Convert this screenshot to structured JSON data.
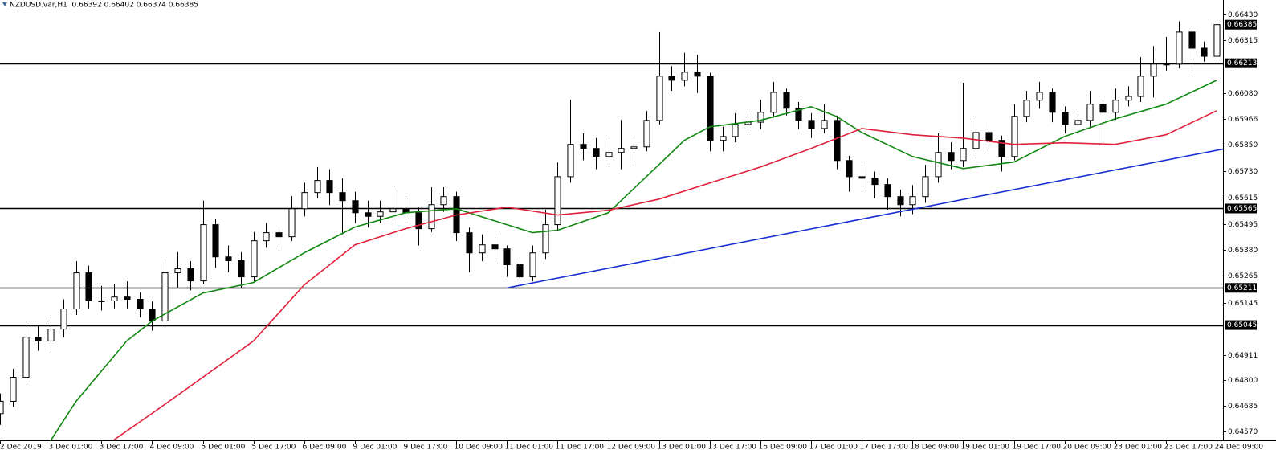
{
  "chart_data": {
    "type": "candlestick",
    "title": "NZDUSD.var,H1  0.66392 0.66402 0.66374 0.66385",
    "xlim": [
      0,
      96.5
    ],
    "ylim": [
      0.64531,
      0.66495
    ],
    "bull_color": "#ffffff",
    "bear_color": "#000000",
    "xticks": [
      {
        "value": 0,
        "label": "2 Dec 2019"
      },
      {
        "value": 4,
        "label": "3 Dec 01:00"
      },
      {
        "value": 8,
        "label": "3 Dec 17:00"
      },
      {
        "value": 12,
        "label": "4 Dec 09:00"
      },
      {
        "value": 16,
        "label": "5 Dec 01:00"
      },
      {
        "value": 20,
        "label": "5 Dec 17:00"
      },
      {
        "value": 24,
        "label": "6 Dec 09:00"
      },
      {
        "value": 28,
        "label": "9 Dec 01:00"
      },
      {
        "value": 32,
        "label": "9 Dec 17:00"
      },
      {
        "value": 36,
        "label": "10 Dec 09:00"
      },
      {
        "value": 40,
        "label": "11 Dec 01:00"
      },
      {
        "value": 44,
        "label": "11 Dec 17:00"
      },
      {
        "value": 48,
        "label": "12 Dec 09:00"
      },
      {
        "value": 52,
        "label": "13 Dec 01:00"
      },
      {
        "value": 56,
        "label": "13 Dec 17:00"
      },
      {
        "value": 60,
        "label": "16 Dec 09:00"
      },
      {
        "value": 64,
        "label": "17 Dec 01:00"
      },
      {
        "value": 68,
        "label": "17 Dec 17:00"
      },
      {
        "value": 72,
        "label": "18 Dec 09:00"
      },
      {
        "value": 76,
        "label": "19 Dec 01:00"
      },
      {
        "value": 80,
        "label": "19 Dec 17:00"
      },
      {
        "value": 84,
        "label": "20 Dec 09:00"
      },
      {
        "value": 88,
        "label": "23 Dec 01:00"
      },
      {
        "value": 92,
        "label": "23 Dec 17:00"
      },
      {
        "value": 96,
        "label": "24 Dec 09:00"
      }
    ],
    "yticks": [
      {
        "value": 0.6643,
        "label": "0.66430"
      },
      0.66315,
      {
        "value": 0.6608,
        "label": "0.66080"
      },
      0.65966,
      {
        "value": 0.6585,
        "label": "0.65850"
      },
      {
        "value": 0.6573,
        "label": "0.65730"
      },
      0.65615,
      0.65495,
      {
        "value": 0.6538,
        "label": "0.65380"
      },
      0.65265,
      0.65145,
      0.64911,
      {
        "value": 0.648,
        "label": "0.64800"
      },
      0.64685,
      {
        "value": 0.6457,
        "label": "0.64570"
      }
    ],
    "hlines": [
      0.66213,
      0.65565,
      0.65211,
      0.65045
    ],
    "candles": [
      [
        0.6465,
        0.6474,
        0.646,
        0.64705
      ],
      [
        0.64705,
        0.6485,
        0.6468,
        0.64812
      ],
      [
        0.64812,
        0.6506,
        0.6479,
        0.64991
      ],
      [
        0.64991,
        0.6504,
        0.6493,
        0.64974
      ],
      [
        0.64974,
        0.6508,
        0.6492,
        0.65027
      ],
      [
        0.65027,
        0.6516,
        0.6499,
        0.65117
      ],
      [
        0.65117,
        0.6533,
        0.6509,
        0.65278
      ],
      [
        0.65278,
        0.6531,
        0.6512,
        0.65153
      ],
      [
        0.65153,
        0.6522,
        0.6511,
        0.65153
      ],
      [
        0.65153,
        0.6523,
        0.6512,
        0.6517
      ],
      [
        0.6517,
        0.6524,
        0.6512,
        0.6516
      ],
      [
        0.6516,
        0.6519,
        0.6508,
        0.65117
      ],
      [
        0.65117,
        0.6515,
        0.6502,
        0.65063
      ],
      [
        0.65063,
        0.6534,
        0.6505,
        0.65278
      ],
      [
        0.65278,
        0.6537,
        0.6521,
        0.65296
      ],
      [
        0.65296,
        0.6533,
        0.652,
        0.65242
      ],
      [
        0.65242,
        0.656,
        0.6523,
        0.65493
      ],
      [
        0.65493,
        0.6552,
        0.653,
        0.65349
      ],
      [
        0.65349,
        0.654,
        0.6528,
        0.65332
      ],
      [
        0.65332,
        0.6537,
        0.6521,
        0.6526
      ],
      [
        0.6526,
        0.6546,
        0.6524,
        0.65421
      ],
      [
        0.65421,
        0.655,
        0.6539,
        0.65457
      ],
      [
        0.65457,
        0.6549,
        0.654,
        0.65439
      ],
      [
        0.65439,
        0.6562,
        0.6542,
        0.65564
      ],
      [
        0.65564,
        0.6568,
        0.6553,
        0.65636
      ],
      [
        0.65636,
        0.6575,
        0.6561,
        0.6569
      ],
      [
        0.6569,
        0.6574,
        0.6558,
        0.65636
      ],
      [
        0.65636,
        0.657,
        0.6545,
        0.656
      ],
      [
        0.656,
        0.6564,
        0.655,
        0.65546
      ],
      [
        0.65546,
        0.656,
        0.6548,
        0.6553
      ],
      [
        0.6553,
        0.656,
        0.655,
        0.6555
      ],
      [
        0.6555,
        0.6564,
        0.6551,
        0.65564
      ],
      [
        0.65564,
        0.6561,
        0.655,
        0.65546
      ],
      [
        0.65546,
        0.6557,
        0.654,
        0.65475
      ],
      [
        0.65475,
        0.6566,
        0.6546,
        0.65582
      ],
      [
        0.65582,
        0.6566,
        0.6555,
        0.65618
      ],
      [
        0.65618,
        0.6564,
        0.6542,
        0.65457
      ],
      [
        0.65457,
        0.6548,
        0.6528,
        0.65367
      ],
      [
        0.65367,
        0.6545,
        0.6533,
        0.65403
      ],
      [
        0.65403,
        0.6544,
        0.6534,
        0.65385
      ],
      [
        0.65385,
        0.654,
        0.6526,
        0.65314
      ],
      [
        0.65314,
        0.6533,
        0.65211,
        0.6526
      ],
      [
        0.6526,
        0.654,
        0.6524,
        0.65367
      ],
      [
        0.65367,
        0.6556,
        0.6534,
        0.65493
      ],
      [
        0.65493,
        0.6577,
        0.6547,
        0.65707
      ],
      [
        0.65707,
        0.6605,
        0.6568,
        0.65851
      ],
      [
        0.65851,
        0.659,
        0.6578,
        0.65833
      ],
      [
        0.65833,
        0.6588,
        0.6574,
        0.65797
      ],
      [
        0.65797,
        0.6588,
        0.6576,
        0.65815
      ],
      [
        0.65815,
        0.6596,
        0.6574,
        0.65833
      ],
      [
        0.65833,
        0.6588,
        0.6577,
        0.6584
      ],
      [
        0.6584,
        0.66,
        0.6582,
        0.65958
      ],
      [
        0.65958,
        0.66352,
        0.6594,
        0.66155
      ],
      [
        0.66155,
        0.662,
        0.6609,
        0.66137
      ],
      [
        0.66137,
        0.6626,
        0.6611,
        0.66173
      ],
      [
        0.66173,
        0.6625,
        0.6608,
        0.66155
      ],
      [
        0.66155,
        0.6617,
        0.6582,
        0.65869
      ],
      [
        0.65869,
        0.6593,
        0.6582,
        0.65886
      ],
      [
        0.65886,
        0.6599,
        0.6586,
        0.6594
      ],
      [
        0.6594,
        0.66,
        0.659,
        0.6595
      ],
      [
        0.6595,
        0.6605,
        0.6592,
        0.65994
      ],
      [
        0.65994,
        0.6613,
        0.6597,
        0.66083
      ],
      [
        0.66083,
        0.661,
        0.6598,
        0.66012
      ],
      [
        0.66012,
        0.6604,
        0.6592,
        0.65958
      ],
      [
        0.65958,
        0.6599,
        0.6588,
        0.65922
      ],
      [
        0.65922,
        0.6603,
        0.659,
        0.65958
      ],
      [
        0.65958,
        0.6598,
        0.6574,
        0.65779
      ],
      [
        0.65779,
        0.658,
        0.6564,
        0.65707
      ],
      [
        0.65707,
        0.6576,
        0.6565,
        0.657
      ],
      [
        0.657,
        0.6573,
        0.6561,
        0.65672
      ],
      [
        0.65672,
        0.657,
        0.6556,
        0.65618
      ],
      [
        0.65618,
        0.6565,
        0.6553,
        0.65582
      ],
      [
        0.65582,
        0.6567,
        0.6554,
        0.65618
      ],
      [
        0.65618,
        0.6576,
        0.6559,
        0.65707
      ],
      [
        0.65707,
        0.659,
        0.6568,
        0.65815
      ],
      [
        0.65815,
        0.6586,
        0.6574,
        0.65779
      ],
      [
        0.65779,
        0.66126,
        0.6575,
        0.65833
      ],
      [
        0.65833,
        0.6596,
        0.658,
        0.65904
      ],
      [
        0.65904,
        0.6595,
        0.6583,
        0.65869
      ],
      [
        0.65869,
        0.6589,
        0.6573,
        0.65797
      ],
      [
        0.65797,
        0.6603,
        0.6578,
        0.65976
      ],
      [
        0.65976,
        0.6609,
        0.6595,
        0.66048
      ],
      [
        0.66048,
        0.6613,
        0.6601,
        0.66083
      ],
      [
        0.66083,
        0.661,
        0.6595,
        0.65994
      ],
      [
        0.65994,
        0.6602,
        0.659,
        0.6594
      ],
      [
        0.6594,
        0.66,
        0.6591,
        0.65958
      ],
      [
        0.65958,
        0.6609,
        0.6593,
        0.6603
      ],
      [
        0.6603,
        0.6606,
        0.6585,
        0.65994
      ],
      [
        0.65994,
        0.661,
        0.6596,
        0.66048
      ],
      [
        0.66048,
        0.6611,
        0.6602,
        0.66065
      ],
      [
        0.66065,
        0.6624,
        0.6604,
        0.66155
      ],
      [
        0.66155,
        0.6629,
        0.6606,
        0.66209
      ],
      [
        0.66209,
        0.6633,
        0.6618,
        0.66209
      ],
      [
        0.66209,
        0.664,
        0.6619,
        0.66352
      ],
      [
        0.66352,
        0.6638,
        0.6617,
        0.6628
      ],
      [
        0.6628,
        0.6631,
        0.6622,
        0.66244
      ],
      [
        0.66244,
        0.66402,
        0.6623,
        0.66385
      ]
    ],
    "series": [
      {
        "color": "#118811",
        "x": [
          4,
          6,
          10,
          12,
          16,
          20,
          24,
          28,
          32,
          36,
          40,
          42,
          44,
          48,
          52,
          54,
          56,
          60,
          64,
          66,
          68,
          72,
          76,
          80,
          84,
          88,
          92,
          96
        ],
        "values": [
          0.6453,
          0.64705,
          0.64974,
          0.65063,
          0.65188,
          0.65235,
          0.65367,
          0.65482,
          0.65546,
          0.65564,
          0.65493,
          0.65457,
          0.65468,
          0.65546,
          0.65761,
          0.65869,
          0.65929,
          0.65958,
          0.66019,
          0.65976,
          0.65904,
          0.65797,
          0.65743,
          0.65772,
          0.65886,
          0.65965,
          0.6603,
          0.66137
        ]
      },
      {
        "color": "#e0203a",
        "x": [
          9,
          12,
          16,
          20,
          24,
          28,
          32,
          36,
          40,
          44,
          48,
          52,
          56,
          60,
          64,
          68,
          72,
          76,
          80,
          84,
          88,
          92,
          96
        ],
        "values": [
          0.64533,
          0.64651,
          0.64812,
          0.64974,
          0.65224,
          0.65403,
          0.65475,
          0.65536,
          0.65571,
          0.65536,
          0.65557,
          0.65607,
          0.65679,
          0.6575,
          0.65833,
          0.65922,
          0.65894,
          0.65879,
          0.65851,
          0.65858,
          0.65851,
          0.65894,
          0.66001
        ]
      }
    ],
    "trendline": {
      "color": "#1a2fd6",
      "x": [
        40,
        96.5
      ],
      "values": [
        0.65211,
        0.6583
      ]
    }
  }
}
